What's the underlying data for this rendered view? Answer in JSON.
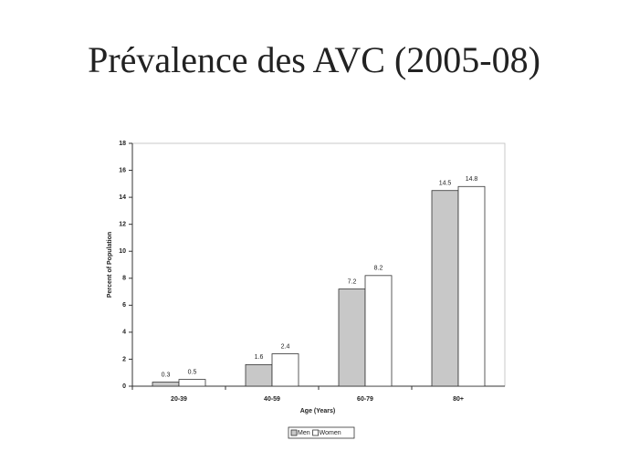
{
  "chart_data": {
    "type": "bar",
    "title": "Prévalence des AVC (2005-08)",
    "x_label": "Age (Years)",
    "y_label": "Percent of Population",
    "categories": [
      "20-39",
      "40-59",
      "60-79",
      "80+"
    ],
    "series": [
      {
        "name": "Men",
        "color": "#c8c8c8",
        "values": [
          0.3,
          1.6,
          7.2,
          14.5
        ]
      },
      {
        "name": "Women",
        "color": "#ffffff",
        "values": [
          0.5,
          2.4,
          8.2,
          14.8
        ]
      }
    ],
    "ylim": [
      0,
      18
    ],
    "yticks": [
      0,
      2,
      4,
      6,
      8,
      10,
      12,
      14,
      16,
      18
    ],
    "legend": "bottom"
  }
}
